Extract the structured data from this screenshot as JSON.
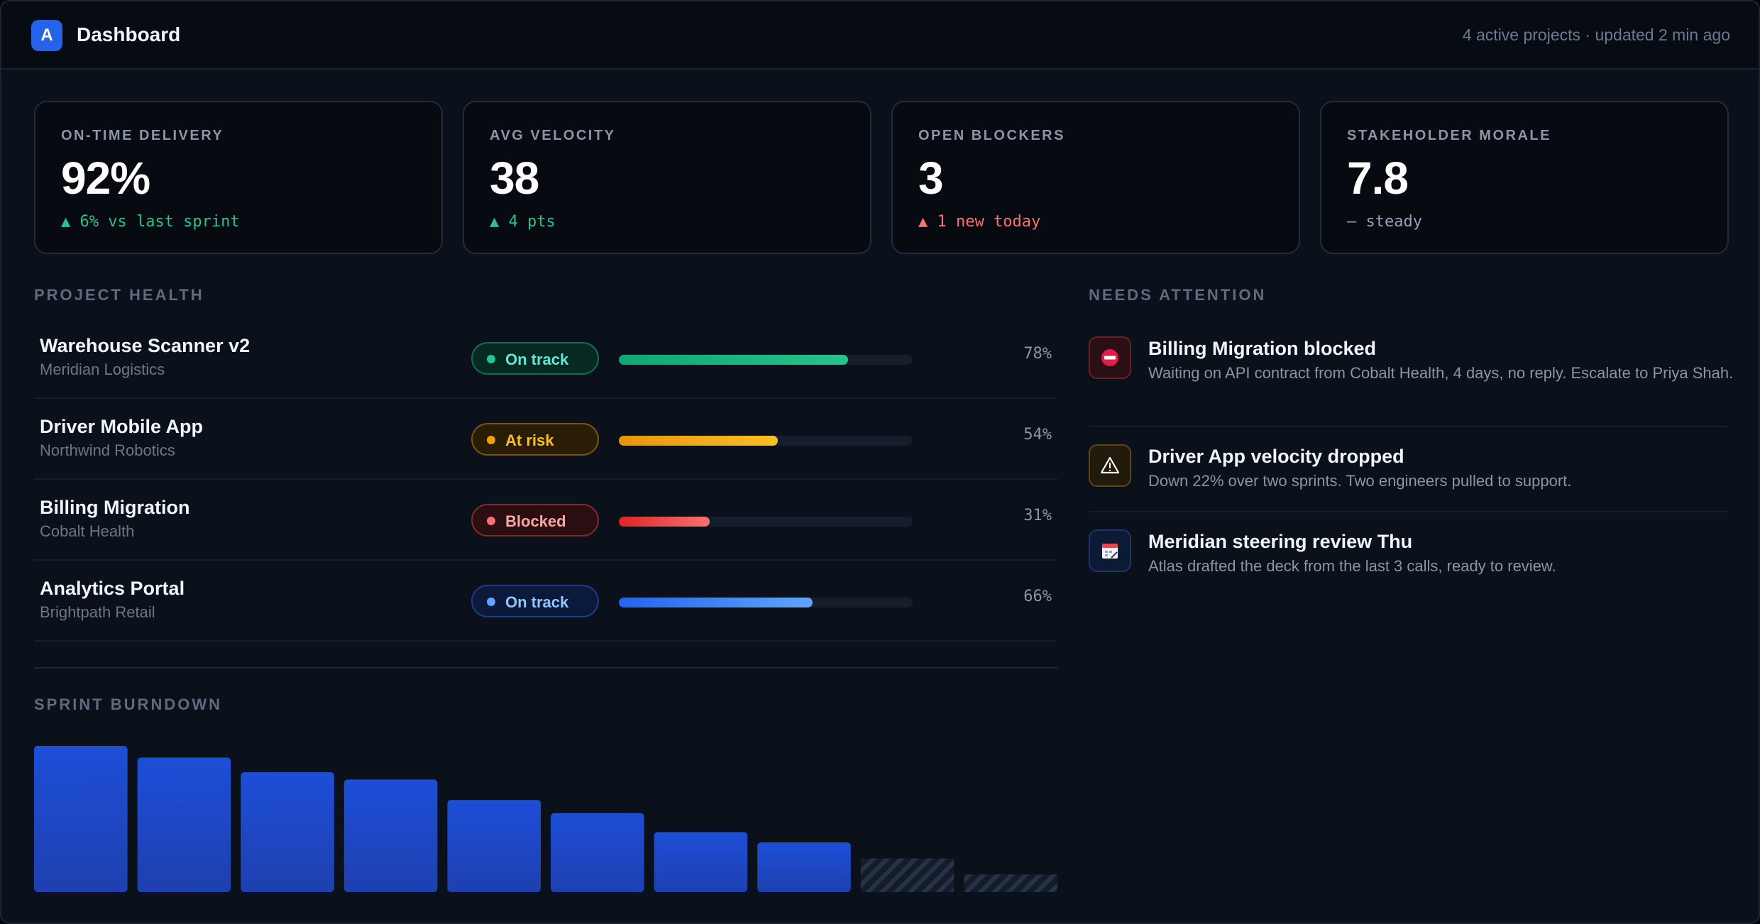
{
  "header": {
    "logo_letter": "A",
    "title": "Dashboard",
    "meta": "4 active projects · updated 2 min ago"
  },
  "kpis": [
    {
      "label": "ON-TIME DELIVERY",
      "value": "92%",
      "delta": "▲ 6% vs last sprint",
      "trend": "up"
    },
    {
      "label": "AVG VELOCITY",
      "value": "38",
      "delta": "▲ 4 pts",
      "trend": "up"
    },
    {
      "label": "OPEN BLOCKERS",
      "value": "3",
      "delta": "▲ 1 new today",
      "trend": "bad"
    },
    {
      "label": "STAKEHOLDER MORALE",
      "value": "7.8",
      "delta": "– steady",
      "trend": "flat"
    }
  ],
  "project_health": {
    "label": "PROJECT HEALTH",
    "projects": [
      {
        "name": "Warehouse Scanner v2",
        "client": "Meridian Logistics",
        "status": "On track",
        "status_kind": "ok",
        "progress": 0.78,
        "progress_label": "78%"
      },
      {
        "name": "Driver Mobile App",
        "client": "Northwind Robotics",
        "status": "At risk",
        "status_kind": "risk",
        "progress": 0.54,
        "progress_label": "54%"
      },
      {
        "name": "Billing Migration",
        "client": "Cobalt Health",
        "status": "Blocked",
        "status_kind": "blocked",
        "progress": 0.31,
        "progress_label": "31%"
      },
      {
        "name": "Analytics Portal",
        "client": "Brightpath Retail",
        "status": "On track",
        "status_kind": "ok-blue",
        "progress": 0.66,
        "progress_label": "66%"
      }
    ]
  },
  "needs_attention": {
    "label": "NEEDS ATTENTION",
    "items": [
      {
        "icon": "no-entry-icon",
        "title": "Billing Migration blocked",
        "desc": "Waiting on API contract from Cobalt Health, 4 days, no reply. Escalate to Priya Shah."
      },
      {
        "icon": "warning-icon",
        "title": "Driver App velocity dropped",
        "desc": "Down 22% over two sprints. Two engineers pulled to support."
      },
      {
        "icon": "calendar-icon",
        "title": "Meridian steering review Thu",
        "desc": "Atlas drafted the deck from the last 3 calls, ready to review."
      }
    ]
  },
  "sprint_burndown": {
    "label": "SPRINT BURNDOWN"
  },
  "chart_data": {
    "type": "bar",
    "values": [
      100,
      92,
      82,
      77,
      63,
      54,
      41,
      34,
      23,
      12
    ],
    "projected": [
      false,
      false,
      false,
      false,
      false,
      false,
      false,
      false,
      true,
      true
    ],
    "ylim": [
      0,
      100
    ],
    "grid": false
  },
  "colors": {
    "green": "#10b981",
    "amber": "#f59e0b",
    "red": "#ef4444",
    "blue": "#3b82f6",
    "bar": "#1d4ed8"
  }
}
